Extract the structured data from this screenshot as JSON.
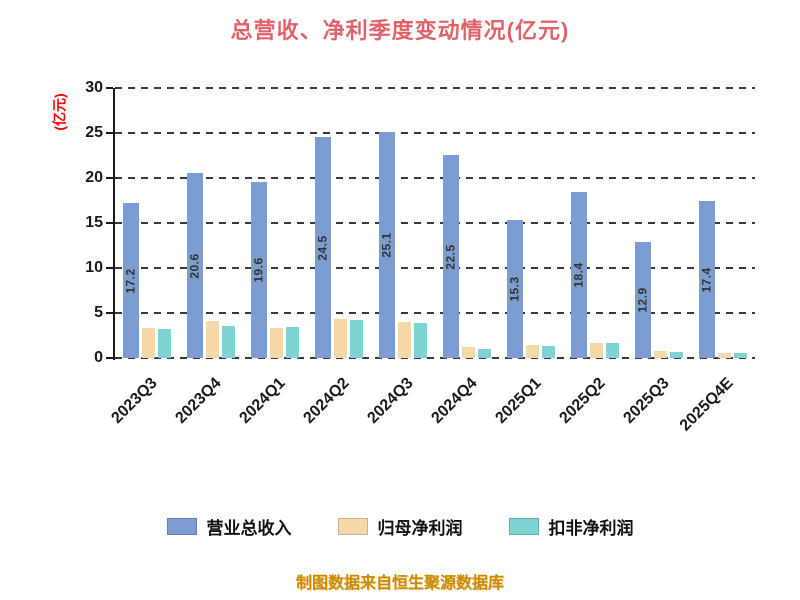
{
  "chart_data": {
    "type": "bar",
    "title": "总营收、净利季度变动情况(亿元)",
    "ylabel": "(亿元)",
    "xlabel": "",
    "categories": [
      "2023Q3",
      "2023Q4",
      "2024Q1",
      "2024Q2",
      "2024Q3",
      "2024Q4",
      "2025Q1",
      "2025Q2",
      "2025Q3",
      "2025Q4E"
    ],
    "series": [
      {
        "name": "营业总收入",
        "color": "#7e9cd4",
        "show_value_labels": true,
        "values": [
          17.2,
          20.6,
          19.6,
          24.5,
          25.1,
          22.5,
          15.3,
          18.4,
          12.9,
          17.4
        ]
      },
      {
        "name": "归母净利润",
        "color": "#f5d9a8",
        "show_value_labels": false,
        "values": [
          3.3,
          4.1,
          3.3,
          4.3,
          4.0,
          1.2,
          1.4,
          1.7,
          0.8,
          0.6
        ]
      },
      {
        "name": "扣非净利润",
        "color": "#7ed3d3",
        "show_value_labels": false,
        "values": [
          3.2,
          3.5,
          3.4,
          4.2,
          3.9,
          1.0,
          1.3,
          1.7,
          0.7,
          0.5
        ]
      }
    ],
    "ylim": [
      0,
      30
    ],
    "yticks": [
      0,
      5,
      10,
      15,
      20,
      25,
      30
    ],
    "grid": "dashed-horizontal",
    "legend_position": "bottom"
  },
  "footer": {
    "text": "制图数据来自恒生聚源数据库"
  },
  "colors": {
    "title": "#e0636a",
    "y_axis_title": "#ff0000",
    "footer": "#cc8a00",
    "axis": "#1a1a1a"
  }
}
